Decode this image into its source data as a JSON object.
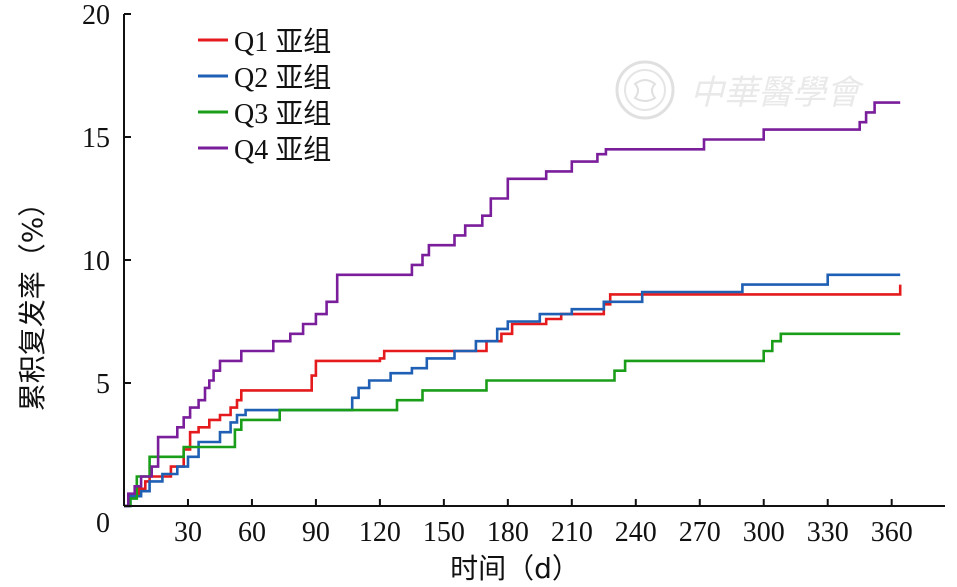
{
  "chart_data": {
    "type": "line",
    "step": true,
    "xlabel": "时间（d）",
    "ylabel": "累积复发率（%）",
    "xlim": [
      0,
      385
    ],
    "ylim": [
      0,
      20
    ],
    "x_ticks": [
      0,
      30,
      60,
      90,
      120,
      150,
      180,
      210,
      240,
      270,
      300,
      330,
      360
    ],
    "y_ticks": [
      5,
      10,
      15,
      20
    ],
    "origin_label": "0",
    "grid": false,
    "legend": "top-left",
    "series": [
      {
        "name": "Q1 亚组",
        "color": "#e41a1c",
        "x": [
          2,
          5,
          7,
          10,
          12,
          22,
          28,
          31,
          35,
          40,
          45,
          50,
          53,
          55,
          88,
          90,
          120,
          122,
          140,
          165,
          170,
          177,
          182,
          198,
          205,
          225,
          228,
          362,
          364
        ],
        "y": [
          0.4,
          0.5,
          0.7,
          1.0,
          1.2,
          1.6,
          2.3,
          3.0,
          3.2,
          3.5,
          3.7,
          4.0,
          4.3,
          4.7,
          5.3,
          5.9,
          6.0,
          6.3,
          6.3,
          6.3,
          6.7,
          7.0,
          7.4,
          7.6,
          7.8,
          8.2,
          8.6,
          8.6,
          9.0
        ]
      },
      {
        "name": "Q2 亚组",
        "color": "#1f5fb4",
        "x": [
          3,
          8,
          12,
          18,
          25,
          30,
          35,
          45,
          50,
          53,
          57,
          75,
          107,
          110,
          115,
          125,
          135,
          142,
          155,
          165,
          175,
          180,
          195,
          210,
          225,
          243,
          290,
          330,
          364
        ],
        "y": [
          0.4,
          0.6,
          1.0,
          1.3,
          1.6,
          2.0,
          2.6,
          3.0,
          3.4,
          3.7,
          3.9,
          3.9,
          4.4,
          4.8,
          5.1,
          5.4,
          5.6,
          6.0,
          6.3,
          6.7,
          7.2,
          7.5,
          7.8,
          8.0,
          8.3,
          8.7,
          9.0,
          9.4,
          9.4
        ]
      },
      {
        "name": "Q3 亚组",
        "color": "#1a9e1a",
        "x": [
          3,
          6,
          12,
          20,
          28,
          35,
          40,
          48,
          52,
          55,
          73,
          90,
          100,
          128,
          140,
          170,
          195,
          230,
          235,
          300,
          304,
          308,
          364
        ],
        "y": [
          0.3,
          1.2,
          2.0,
          2.0,
          2.4,
          2.4,
          2.4,
          2.4,
          3.1,
          3.5,
          3.9,
          3.9,
          3.9,
          4.3,
          4.7,
          5.1,
          5.1,
          5.5,
          5.9,
          6.3,
          6.7,
          7.0,
          7.0
        ]
      },
      {
        "name": "Q4 亚组",
        "color": "#7a1e9c",
        "x": [
          2,
          5,
          8,
          13,
          16,
          25,
          28,
          31,
          35,
          38,
          40,
          42,
          45,
          55,
          70,
          78,
          84,
          90,
          95,
          100,
          135,
          140,
          143,
          155,
          160,
          168,
          172,
          180,
          198,
          210,
          222,
          226,
          272,
          300,
          345,
          348,
          352,
          364
        ],
        "y": [
          0.5,
          0.8,
          1.2,
          1.6,
          2.8,
          3.2,
          3.6,
          4.0,
          4.3,
          4.8,
          5.1,
          5.5,
          5.9,
          6.3,
          6.7,
          7.0,
          7.4,
          7.8,
          8.3,
          9.4,
          9.8,
          10.2,
          10.6,
          11.0,
          11.4,
          11.8,
          12.5,
          13.3,
          13.6,
          14.0,
          14.3,
          14.5,
          14.9,
          15.3,
          15.6,
          16.0,
          16.4,
          16.4
        ]
      }
    ]
  },
  "watermark": {
    "text": "中華醫學會",
    "seal_icon": "seal-icon"
  }
}
